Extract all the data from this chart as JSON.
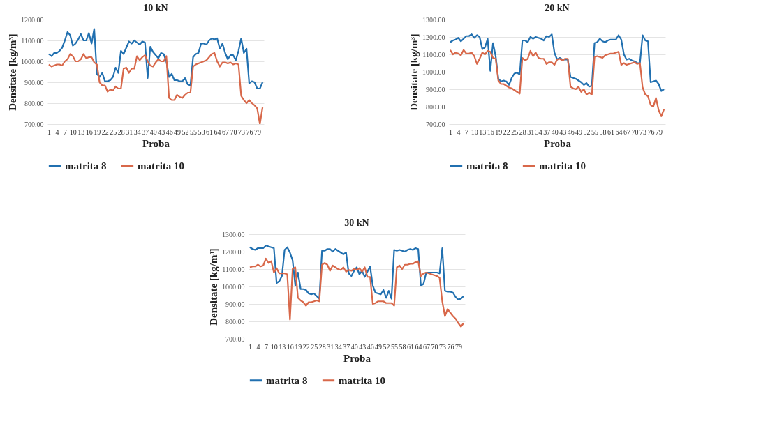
{
  "chart_data": [
    {
      "type": "line",
      "title": "10 kN",
      "xlabel": "Proba",
      "ylabel": "Densitate [kg/m³]",
      "categories": [
        "1",
        null,
        null,
        "4",
        null,
        null,
        "7",
        null,
        null,
        "10",
        null,
        null,
        "13",
        null,
        null,
        "16",
        null,
        null,
        "19",
        null,
        null,
        "22",
        null,
        null,
        "25",
        null,
        null,
        "28",
        null,
        null,
        "31",
        null,
        null,
        "34",
        null,
        null,
        "37",
        null,
        null,
        "40",
        null,
        null,
        "43",
        null,
        null,
        "46",
        null,
        null,
        "49",
        null,
        null,
        "52",
        null,
        null,
        "55",
        null,
        null,
        "58",
        null,
        null,
        "61",
        null,
        null,
        "64",
        null,
        null,
        "67",
        null,
        null,
        "70",
        null,
        null,
        "73",
        null,
        null,
        "76",
        null,
        null,
        "79",
        null,
        null
      ],
      "ylim": [
        700,
        1200
      ],
      "yticks": [
        {
          "value": 700,
          "label": "700.00"
        },
        {
          "value": 800,
          "label": "800.00"
        },
        {
          "value": 900,
          "label": "900.00"
        },
        {
          "value": 1000,
          "label": "1000.00"
        },
        {
          "value": 1100,
          "label": "1100.00"
        },
        {
          "value": 1200,
          "label": "1200.00"
        }
      ],
      "grid": "y",
      "legend": "bottom",
      "series": [
        {
          "name": "matrita 8",
          "color": "#2170b0",
          "values": [
            1035,
            1025,
            1040,
            1040,
            1050,
            1065,
            1100,
            1140,
            1125,
            1075,
            1085,
            1105,
            1130,
            1100,
            1100,
            1135,
            1085,
            1155,
            940,
            925,
            945,
            905,
            905,
            910,
            925,
            970,
            945,
            1050,
            1035,
            1065,
            1095,
            1085,
            1100,
            1090,
            1080,
            1095,
            1090,
            920,
            1070,
            1045,
            1030,
            1015,
            1040,
            1035,
            1000,
            925,
            940,
            910,
            910,
            905,
            905,
            920,
            890,
            885,
            1020,
            1035,
            1040,
            1085,
            1085,
            1080,
            1100,
            1110,
            1105,
            1110,
            1060,
            1085,
            1040,
            1010,
            1030,
            1030,
            1005,
            1050,
            1110,
            1040,
            1060,
            895,
            905,
            900,
            870,
            870,
            900
          ]
        },
        {
          "name": "matrita 10",
          "color": "#d8684a",
          "values": [
            985,
            975,
            980,
            985,
            985,
            980,
            1000,
            1010,
            1035,
            1025,
            1000,
            1000,
            1010,
            1035,
            1015,
            1020,
            1020,
            995,
            985,
            900,
            885,
            885,
            855,
            865,
            860,
            880,
            870,
            870,
            965,
            970,
            945,
            965,
            965,
            1025,
            1005,
            1020,
            1030,
            1000,
            980,
            975,
            995,
            1010,
            1000,
            1000,
            1025,
            825,
            815,
            815,
            840,
            830,
            825,
            840,
            850,
            850,
            975,
            985,
            990,
            995,
            1000,
            1005,
            1020,
            1035,
            1040,
            1000,
            975,
            995,
            995,
            990,
            995,
            985,
            990,
            985,
            835,
            815,
            800,
            815,
            800,
            790,
            775,
            700,
            780
          ]
        }
      ]
    },
    {
      "type": "line",
      "title": "20 kN",
      "xlabel": "Proba",
      "ylabel": "Densitate [kg/m³]",
      "categories": [
        "1",
        null,
        null,
        "4",
        null,
        null,
        "7",
        null,
        null,
        "10",
        null,
        null,
        "13",
        null,
        null,
        "16",
        null,
        null,
        "19",
        null,
        null,
        "22",
        null,
        null,
        "25",
        null,
        null,
        "28",
        null,
        null,
        "31",
        null,
        null,
        "34",
        null,
        null,
        "37",
        null,
        null,
        "40",
        null,
        null,
        "43",
        null,
        null,
        "46",
        null,
        null,
        "49",
        null,
        null,
        "52",
        null,
        null,
        "55",
        null,
        null,
        "58",
        null,
        null,
        "61",
        null,
        null,
        "64",
        null,
        null,
        "67",
        null,
        null,
        "70",
        null,
        null,
        "73",
        null,
        null,
        "76",
        null,
        null,
        "79",
        null,
        null
      ],
      "ylim": [
        700,
        1300
      ],
      "yticks": [
        {
          "value": 700,
          "label": "700.00"
        },
        {
          "value": 800,
          "label": "800.00"
        },
        {
          "value": 900,
          "label": "900.00"
        },
        {
          "value": 1000,
          "label": "1000.00"
        },
        {
          "value": 1100,
          "label": "1100.00"
        },
        {
          "value": 1200,
          "label": "1200.00"
        },
        {
          "value": 1300,
          "label": "1300.00"
        }
      ],
      "grid": "y",
      "legend": "bottom",
      "series": [
        {
          "name": "matrita 8",
          "color": "#2170b0",
          "values": [
            1170,
            1180,
            1185,
            1195,
            1175,
            1190,
            1205,
            1205,
            1215,
            1195,
            1210,
            1200,
            1130,
            1140,
            1190,
            1005,
            1165,
            1090,
            960,
            945,
            950,
            945,
            925,
            965,
            990,
            995,
            985,
            1180,
            1180,
            1170,
            1200,
            1190,
            1200,
            1195,
            1190,
            1180,
            1205,
            1200,
            1215,
            1110,
            1070,
            1080,
            1070,
            1070,
            1070,
            970,
            965,
            960,
            950,
            940,
            925,
            935,
            915,
            920,
            1165,
            1170,
            1190,
            1175,
            1170,
            1180,
            1185,
            1185,
            1185,
            1210,
            1185,
            1100,
            1070,
            1075,
            1065,
            1060,
            1050,
            1050,
            1210,
            1180,
            1175,
            940,
            945,
            950,
            930,
            890,
            900
          ]
        },
        {
          "name": "matrita 10",
          "color": "#d8684a",
          "values": [
            1125,
            1100,
            1110,
            1105,
            1095,
            1125,
            1105,
            1105,
            1110,
            1090,
            1045,
            1075,
            1110,
            1100,
            1120,
            1115,
            1080,
            1075,
            950,
            930,
            930,
            920,
            910,
            905,
            895,
            885,
            875,
            1080,
            1065,
            1075,
            1120,
            1090,
            1110,
            1080,
            1075,
            1075,
            1045,
            1055,
            1055,
            1040,
            1070,
            1075,
            1065,
            1075,
            1075,
            915,
            905,
            900,
            915,
            885,
            900,
            870,
            880,
            870,
            1085,
            1090,
            1085,
            1080,
            1095,
            1100,
            1105,
            1105,
            1110,
            1115,
            1040,
            1050,
            1040,
            1045,
            1050,
            1055,
            1045,
            1050,
            910,
            870,
            860,
            810,
            800,
            850,
            780,
            745,
            785
          ]
        }
      ]
    },
    {
      "type": "line",
      "title": "30 kN",
      "xlabel": "Proba",
      "ylabel": "Densitate [kg/m³]",
      "categories": [
        "1",
        null,
        null,
        "4",
        null,
        null,
        "7",
        null,
        null,
        "10",
        null,
        null,
        "13",
        null,
        null,
        "16",
        null,
        null,
        "19",
        null,
        null,
        "22",
        null,
        null,
        "25",
        null,
        null,
        "28",
        null,
        null,
        "31",
        null,
        null,
        "34",
        null,
        null,
        "37",
        null,
        null,
        "40",
        null,
        null,
        "43",
        null,
        null,
        "46",
        null,
        null,
        "49",
        null,
        null,
        "52",
        null,
        null,
        "55",
        null,
        null,
        "58",
        null,
        null,
        "61",
        null,
        null,
        "64",
        null,
        null,
        "67",
        null,
        null,
        "70",
        null,
        null,
        "73",
        null,
        null,
        "76",
        null,
        null,
        "79",
        null,
        null
      ],
      "ylim": [
        700,
        1300
      ],
      "yticks": [
        {
          "value": 700,
          "label": "700.00"
        },
        {
          "value": 800,
          "label": "800.00"
        },
        {
          "value": 900,
          "label": "900.00"
        },
        {
          "value": 1000,
          "label": "1000.00"
        },
        {
          "value": 1100,
          "label": "1100.00"
        },
        {
          "value": 1200,
          "label": "1200.00"
        },
        {
          "value": 1300,
          "label": "1300.00"
        }
      ],
      "grid": "y",
      "legend": "bottom",
      "series": [
        {
          "name": "matrita 8",
          "color": "#2170b0",
          "values": [
            1225,
            1215,
            1210,
            1220,
            1220,
            1220,
            1235,
            1230,
            1225,
            1220,
            1020,
            1030,
            1060,
            1210,
            1225,
            1195,
            1150,
            1005,
            1080,
            985,
            985,
            980,
            960,
            955,
            960,
            945,
            930,
            1205,
            1205,
            1215,
            1215,
            1200,
            1215,
            1205,
            1195,
            1185,
            1195,
            1075,
            1060,
            1090,
            1110,
            1070,
            1090,
            1055,
            1085,
            1115,
            1005,
            965,
            960,
            955,
            980,
            935,
            975,
            930,
            1210,
            1205,
            1210,
            1205,
            1200,
            1210,
            1215,
            1210,
            1220,
            1215,
            1005,
            1015,
            1080,
            1080,
            1080,
            1080,
            1080,
            1075,
            1220,
            975,
            970,
            970,
            965,
            940,
            925,
            930,
            945
          ]
        },
        {
          "name": "matrita 10",
          "color": "#d8684a",
          "values": [
            1110,
            1115,
            1115,
            1125,
            1115,
            1120,
            1160,
            1135,
            1145,
            1080,
            1105,
            1075,
            1075,
            1075,
            1070,
            810,
            1100,
            1110,
            935,
            920,
            910,
            890,
            910,
            910,
            915,
            920,
            915,
            1125,
            1135,
            1125,
            1090,
            1120,
            1110,
            1100,
            1095,
            1110,
            1085,
            1095,
            1090,
            1100,
            1095,
            1105,
            1085,
            1110,
            1055,
            1055,
            900,
            905,
            915,
            915,
            915,
            905,
            905,
            905,
            890,
            1110,
            1120,
            1100,
            1125,
            1125,
            1130,
            1130,
            1140,
            1145,
            1060,
            1075,
            1080,
            1075,
            1070,
            1065,
            1060,
            1050,
            915,
            830,
            870,
            850,
            830,
            815,
            790,
            770,
            790
          ]
        }
      ]
    }
  ]
}
